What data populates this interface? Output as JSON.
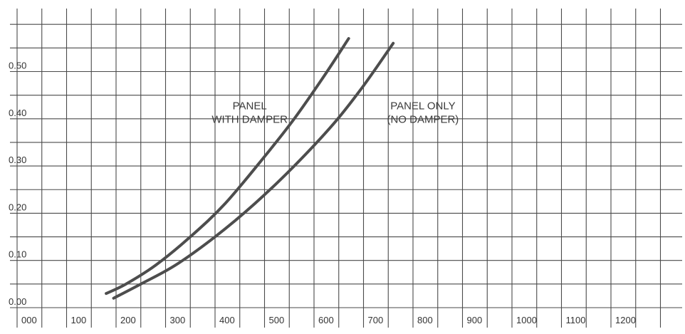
{
  "chart_data": {
    "type": "line",
    "title": "",
    "xlabel": "",
    "ylabel": "",
    "grid": true,
    "xlim": [
      0,
      1300
    ],
    "ylim": [
      0,
      0.6
    ],
    "x_ticks": [
      "000",
      "100",
      "200",
      "300",
      "400",
      "500",
      "600",
      "700",
      "800",
      "900",
      "1000",
      "1100",
      "1200"
    ],
    "y_ticks": [
      "0.00",
      "0.10",
      "0.20",
      "0.30",
      "0.40",
      "0.50"
    ],
    "series": [
      {
        "name": "PANEL WITH DAMPER",
        "color": "#4d4d4d",
        "x": [
          180,
          220,
          280,
          350,
          420,
          500,
          560,
          620,
          670
        ],
        "y": [
          0.03,
          0.05,
          0.09,
          0.15,
          0.22,
          0.32,
          0.4,
          0.49,
          0.57
        ]
      },
      {
        "name": "PANEL ONLY (NO DAMPER)",
        "color": "#4d4d4d",
        "x": [
          195,
          250,
          320,
          400,
          480,
          560,
          640,
          700,
          760
        ],
        "y": [
          0.02,
          0.05,
          0.09,
          0.15,
          0.22,
          0.3,
          0.39,
          0.47,
          0.56
        ]
      }
    ],
    "annotations": [
      {
        "lines": [
          "PANEL",
          "WITH DAMPER"
        ],
        "at_x": 470,
        "at_y": 0.42
      },
      {
        "lines": [
          "PANEL ONLY",
          "(NO DAMPER)"
        ],
        "at_x": 820,
        "at_y": 0.42
      }
    ]
  }
}
